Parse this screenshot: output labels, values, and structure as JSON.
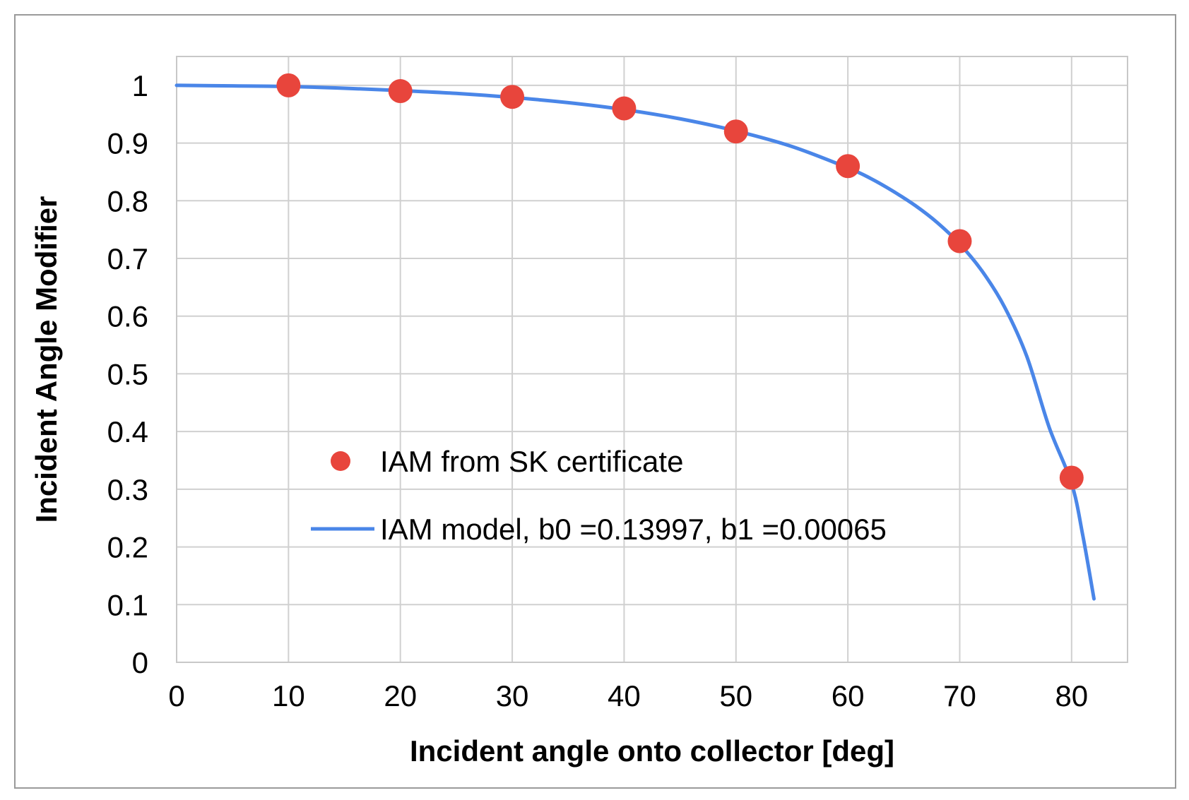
{
  "chart_data": {
    "type": "scatter",
    "xlabel": "Incident angle onto collector [deg]",
    "ylabel": "Incident Angle Modifier",
    "xlim": [
      0,
      85
    ],
    "ylim": [
      0,
      1.05
    ],
    "x_ticks": [
      "0",
      "10",
      "20",
      "30",
      "40",
      "50",
      "60",
      "70",
      "80"
    ],
    "y_ticks": [
      "0",
      "0.1",
      "0.2",
      "0.3",
      "0.4",
      "0.5",
      "0.6",
      "0.7",
      "0.8",
      "0.9",
      "1"
    ],
    "grid": true,
    "legend_position": "center-left",
    "series": [
      {
        "name": "IAM from SK certificate",
        "kind": "markers",
        "color": "#e8453c",
        "x": [
          10,
          20,
          30,
          40,
          50,
          60,
          70,
          80
        ],
        "y": [
          1.0,
          0.99,
          0.98,
          0.96,
          0.92,
          0.86,
          0.73,
          0.32
        ]
      },
      {
        "name": "IAM model, b0 =0.13997, b1 =0.00065",
        "kind": "line",
        "color": "#4a86e8",
        "x": [
          0,
          5,
          10,
          15,
          20,
          25,
          30,
          35,
          40,
          45,
          50,
          55,
          60,
          62,
          64,
          66,
          68,
          70,
          72,
          74,
          76,
          78,
          80,
          81,
          82
        ],
        "y": [
          1.0,
          0.999,
          0.998,
          0.995,
          0.991,
          0.986,
          0.979,
          0.97,
          0.958,
          0.942,
          0.921,
          0.894,
          0.857,
          0.839,
          0.817,
          0.792,
          0.762,
          0.725,
          0.678,
          0.616,
          0.53,
          0.407,
          0.31,
          0.22,
          0.11
        ]
      }
    ]
  }
}
